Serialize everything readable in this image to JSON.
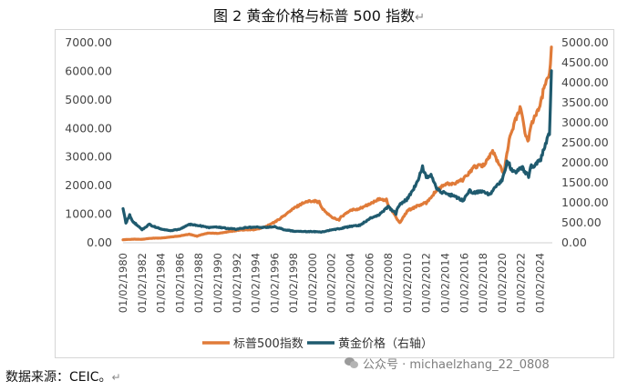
{
  "title": {
    "text": "图 2    黄金价格与标普 500 指数",
    "return_mark": "↵"
  },
  "source": {
    "text": "数据来源：CEIC。",
    "return_mark": "↵"
  },
  "watermark": {
    "icon": "wechat-icon",
    "text": "公众号 · michaelzhang_22_0808"
  },
  "colors": {
    "sp500": "#e07b39",
    "gold": "#1f5a6e",
    "axis": "#d0d0d0"
  },
  "chart_data": {
    "type": "line",
    "title": "图 2    黄金价格与标普 500 指数",
    "left_axis": {
      "min": 0,
      "max": 7000,
      "step": 1000,
      "tick_labels": [
        "0.00",
        "1000.00",
        "2000.00",
        "3000.00",
        "4000.00",
        "5000.00",
        "6000.00",
        "7000.00"
      ]
    },
    "right_axis": {
      "min": 0,
      "max": 5000,
      "step": 500,
      "tick_labels": [
        "0.00",
        "500.00",
        "1000.00",
        "1500.00",
        "2000.00",
        "2500.00",
        "3000.00",
        "3500.00",
        "4000.00",
        "4500.00",
        "5000.00"
      ]
    },
    "x_range": [
      1980.0,
      2025.3
    ],
    "x_tick_labels": [
      "01/02/1980",
      "01/02/1982",
      "01/02/1984",
      "01/02/1986",
      "01/02/1988",
      "01/02/1990",
      "01/02/1992",
      "01/02/1994",
      "01/02/1996",
      "01/02/1998",
      "01/02/2000",
      "01/02/2002",
      "01/02/2004",
      "01/02/2006",
      "01/02/2008",
      "01/02/2010",
      "01/02/2012",
      "01/02/2014",
      "01/02/2016",
      "01/02/2018",
      "01/02/2020",
      "01/02/2022",
      "01/02/2024"
    ],
    "legend": {
      "position": "bottom",
      "items": [
        "标普500指数",
        "黄金价格（右轴）"
      ]
    },
    "series": [
      {
        "name": "标普500指数",
        "axis": "left",
        "points": [
          [
            1980,
            107
          ],
          [
            1981,
            125
          ],
          [
            1982,
            120
          ],
          [
            1983,
            160
          ],
          [
            1984,
            165
          ],
          [
            1985,
            200
          ],
          [
            1986,
            240
          ],
          [
            1987,
            300
          ],
          [
            1987.8,
            230
          ],
          [
            1988,
            260
          ],
          [
            1989,
            340
          ],
          [
            1990,
            330
          ],
          [
            1991,
            380
          ],
          [
            1992,
            430
          ],
          [
            1993,
            460
          ],
          [
            1994,
            460
          ],
          [
            1995,
            560
          ],
          [
            1996,
            720
          ],
          [
            1997,
            950
          ],
          [
            1998,
            1200
          ],
          [
            1999,
            1400
          ],
          [
            2000,
            1480
          ],
          [
            2000.7,
            1420
          ],
          [
            2001,
            1200
          ],
          [
            2002,
            900
          ],
          [
            2002.8,
            800
          ],
          [
            2003,
            900
          ],
          [
            2004,
            1130
          ],
          [
            2005,
            1200
          ],
          [
            2006,
            1350
          ],
          [
            2007,
            1520
          ],
          [
            2007.8,
            1500
          ],
          [
            2008,
            1300
          ],
          [
            2009.2,
            700
          ],
          [
            2010,
            1120
          ],
          [
            2011,
            1280
          ],
          [
            2012,
            1400
          ],
          [
            2013,
            1800
          ],
          [
            2014,
            2050
          ],
          [
            2015,
            2060
          ],
          [
            2016,
            2240
          ],
          [
            2017,
            2650
          ],
          [
            2018,
            2700
          ],
          [
            2019,
            3200
          ],
          [
            2020.2,
            2400
          ],
          [
            2020.5,
            3200
          ],
          [
            2021,
            3900
          ],
          [
            2021.9,
            4770
          ],
          [
            2022.5,
            3700
          ],
          [
            2022.8,
            3600
          ],
          [
            2023,
            4100
          ],
          [
            2023.5,
            4500
          ],
          [
            2024,
            4800
          ],
          [
            2024.5,
            5500
          ],
          [
            2025,
            5950
          ],
          [
            2025.2,
            6850
          ]
        ]
      },
      {
        "name": "黄金价格（右轴）",
        "axis": "right",
        "points": [
          [
            1980,
            850
          ],
          [
            1980.3,
            500
          ],
          [
            1980.7,
            690
          ],
          [
            1981,
            540
          ],
          [
            1982,
            330
          ],
          [
            1982.8,
            460
          ],
          [
            1983,
            430
          ],
          [
            1984,
            340
          ],
          [
            1985,
            300
          ],
          [
            1986,
            340
          ],
          [
            1987,
            460
          ],
          [
            1988,
            430
          ],
          [
            1989,
            380
          ],
          [
            1990,
            390
          ],
          [
            1991,
            360
          ],
          [
            1992,
            340
          ],
          [
            1993,
            380
          ],
          [
            1994,
            390
          ],
          [
            1995,
            385
          ],
          [
            1996,
            400
          ],
          [
            1997,
            330
          ],
          [
            1998,
            290
          ],
          [
            1999,
            280
          ],
          [
            2000,
            280
          ],
          [
            2001,
            270
          ],
          [
            2002,
            320
          ],
          [
            2003,
            360
          ],
          [
            2004,
            410
          ],
          [
            2005,
            440
          ],
          [
            2006,
            600
          ],
          [
            2007,
            700
          ],
          [
            2008,
            900
          ],
          [
            2008.8,
            730
          ],
          [
            2009,
            900
          ],
          [
            2010,
            1100
          ],
          [
            2011,
            1500
          ],
          [
            2011.6,
            1880
          ],
          [
            2012,
            1650
          ],
          [
            2012.5,
            1700
          ],
          [
            2013,
            1400
          ],
          [
            2013.5,
            1250
          ],
          [
            2014,
            1250
          ],
          [
            2015,
            1150
          ],
          [
            2015.9,
            1060
          ],
          [
            2016.5,
            1300
          ],
          [
            2017,
            1250
          ],
          [
            2018,
            1300
          ],
          [
            2018.7,
            1200
          ],
          [
            2019,
            1300
          ],
          [
            2019.7,
            1500
          ],
          [
            2020,
            1550
          ],
          [
            2020.6,
            2060
          ],
          [
            2021,
            1800
          ],
          [
            2021.3,
            1750
          ],
          [
            2022,
            1900
          ],
          [
            2022.8,
            1650
          ],
          [
            2023,
            1900
          ],
          [
            2023.5,
            1950
          ],
          [
            2024,
            2050
          ],
          [
            2024.5,
            2400
          ],
          [
            2025,
            2700
          ],
          [
            2025.2,
            4300
          ]
        ]
      }
    ]
  }
}
